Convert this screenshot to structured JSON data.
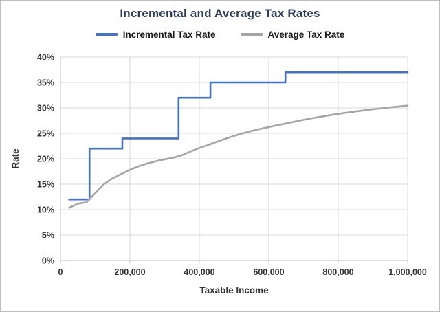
{
  "chart_data": {
    "type": "line",
    "title": "Incremental and Average Tax Rates",
    "title_color": "#2f3d5c",
    "xlabel": "Taxable Income",
    "ylabel": "Rate",
    "xlim": [
      0,
      1000000
    ],
    "ylim": [
      0,
      0.4
    ],
    "grid": true,
    "grid_color": "#d9d9d9",
    "axis_line_color": "#bfbfbf",
    "legend_position": "top",
    "x_ticks": [
      0,
      200000,
      400000,
      600000,
      800000,
      1000000
    ],
    "x_tick_labels": [
      "0",
      "200,000",
      "400,000",
      "600,000",
      "800,000",
      "1,000,000"
    ],
    "y_ticks": [
      0,
      0.05,
      0.1,
      0.15,
      0.2,
      0.25,
      0.3,
      0.35,
      0.4
    ],
    "y_tick_labels": [
      "0%",
      "5%",
      "10%",
      "15%",
      "20%",
      "25%",
      "30%",
      "35%",
      "40%"
    ],
    "series": [
      {
        "name": "Incremental Tax Rate",
        "color": "#4472c4",
        "points": [
          [
            25000,
            0.12
          ],
          [
            83550,
            0.12
          ],
          [
            83550,
            0.22
          ],
          [
            178150,
            0.22
          ],
          [
            178150,
            0.24
          ],
          [
            340100,
            0.24
          ],
          [
            340100,
            0.32
          ],
          [
            431900,
            0.32
          ],
          [
            431900,
            0.35
          ],
          [
            647850,
            0.35
          ],
          [
            647850,
            0.37
          ],
          [
            1000000,
            0.37
          ]
        ]
      },
      {
        "name": "Average Tax Rate",
        "color": "#a5a5a5",
        "points": [
          [
            25000,
            0.1036
          ],
          [
            50000,
            0.1118
          ],
          [
            75000,
            0.1145
          ],
          [
            100000,
            0.1323
          ],
          [
            125000,
            0.1499
          ],
          [
            150000,
            0.1616
          ],
          [
            175000,
            0.1699
          ],
          [
            200000,
            0.1784
          ],
          [
            225000,
            0.1852
          ],
          [
            250000,
            0.1907
          ],
          [
            275000,
            0.1952
          ],
          [
            300000,
            0.1989
          ],
          [
            325000,
            0.2021
          ],
          [
            350000,
            0.207
          ],
          [
            375000,
            0.2146
          ],
          [
            400000,
            0.2212
          ],
          [
            425000,
            0.227
          ],
          [
            450000,
            0.2333
          ],
          [
            475000,
            0.2395
          ],
          [
            500000,
            0.245
          ],
          [
            525000,
            0.25
          ],
          [
            550000,
            0.2546
          ],
          [
            575000,
            0.2587
          ],
          [
            600000,
            0.2625
          ],
          [
            625000,
            0.266
          ],
          [
            650000,
            0.2693
          ],
          [
            675000,
            0.273
          ],
          [
            700000,
            0.2765
          ],
          [
            725000,
            0.2797
          ],
          [
            750000,
            0.2827
          ],
          [
            775000,
            0.2855
          ],
          [
            800000,
            0.2882
          ],
          [
            825000,
            0.2907
          ],
          [
            850000,
            0.293
          ],
          [
            875000,
            0.2952
          ],
          [
            900000,
            0.2973
          ],
          [
            925000,
            0.2992
          ],
          [
            950000,
            0.3011
          ],
          [
            975000,
            0.3029
          ],
          [
            1000000,
            0.3045
          ]
        ]
      }
    ]
  }
}
